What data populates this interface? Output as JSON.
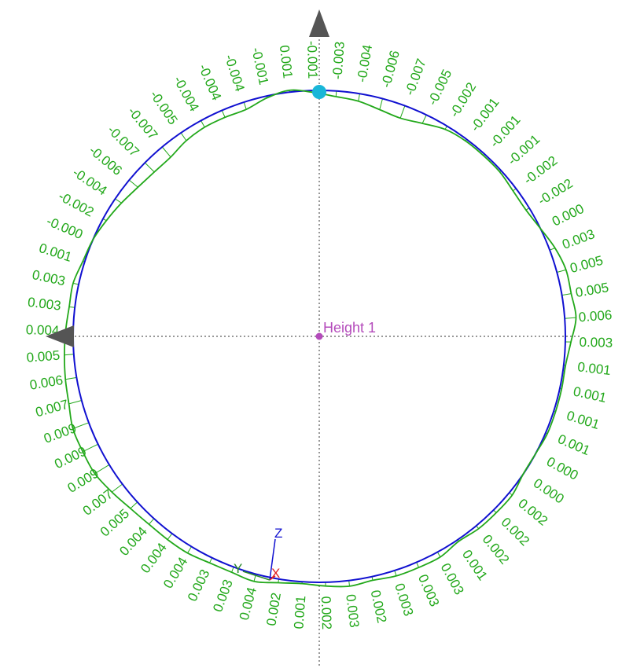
{
  "center_label": "Height 1",
  "triad": {
    "x": "X",
    "y": "Y",
    "z": "Z"
  },
  "colors": {
    "nominal_circle": "#1010d0",
    "deviation": "#22a81a",
    "center": "#b44bbb",
    "start_marker": "#19b6d8",
    "triad_x": "#e02020",
    "triad_y": "#2a8a2a",
    "triad_z": "#1010d0",
    "arrow_marker": "#555555",
    "crosshair": "#777777"
  },
  "icons": {
    "arrow_marker": "triangle-arrow-icon",
    "start_marker": "start-point-icon"
  },
  "deviation_labels": [
    "-0.003",
    "-0.004",
    "-0.006",
    "-0.007",
    "-0.005",
    "-0.002",
    "-0.001",
    "-0.001",
    "-0.001",
    "-0.002",
    "-0.002",
    "0.000",
    "0.003",
    "0.005",
    "0.005",
    "0.006",
    "0.003",
    "0.001",
    "0.001",
    "0.001",
    "0.001",
    "0.000",
    "0.000",
    "0.002",
    "0.002",
    "0.002",
    "0.001",
    "0.003",
    "0.003",
    "0.003",
    "0.002",
    "0.003",
    "0.002",
    "0.001",
    "0.002",
    "0.004",
    "0.003",
    "0.003",
    "0.004",
    "0.004",
    "0.004",
    "0.005",
    "0.007",
    "0.009",
    "0.009",
    "0.009",
    "0.007",
    "0.006",
    "0.005",
    "0.004",
    "0.003",
    "0.003",
    "0.001",
    "-0.000",
    "-0.002",
    "-0.004",
    "-0.006",
    "-0.007",
    "-0.007",
    "-0.005",
    "-0.004",
    "-0.004",
    "-0.004",
    "-0.001",
    "0.001",
    "-0.001"
  ]
}
